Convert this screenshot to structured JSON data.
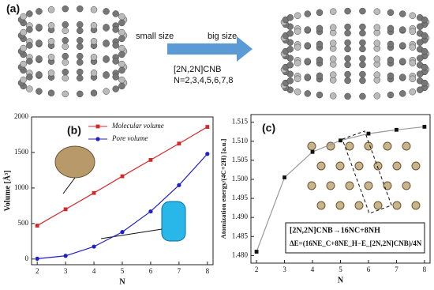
{
  "panel_a": {
    "label": "(a)",
    "left_text": "small size",
    "right_text": "big size",
    "formula": "[2N,2N]CNB",
    "range": "N=2,3,4,5,6,7,8"
  },
  "chart_data": [
    {
      "type": "line",
      "panel_label": "(b)",
      "x_label": "N",
      "y_label": "Volume [Å³]",
      "x": [
        2,
        3,
        4,
        5,
        6,
        7,
        8
      ],
      "xlim": [
        1.8,
        8.2
      ],
      "xticks": [
        2,
        3,
        4,
        5,
        6,
        7,
        8
      ],
      "ylim": [
        -80,
        2000
      ],
      "yticks": [
        0,
        500,
        1000,
        1500,
        2000
      ],
      "series": [
        {
          "name": "Molecular volume",
          "color": "#d62728",
          "marker": "square",
          "values": [
            470,
            700,
            930,
            1165,
            1395,
            1625,
            1860
          ]
        },
        {
          "name": "Pore volume",
          "color": "#1f1fc8",
          "marker": "circle",
          "values": [
            5,
            45,
            175,
            380,
            670,
            1040,
            1480
          ]
        }
      ],
      "legend": "top-left"
    },
    {
      "type": "line",
      "panel_label": "(c)",
      "x_label": "N",
      "y_label": "Atomization energy/(4C+2H) [a.u.]",
      "x": [
        2,
        3,
        4,
        5,
        6,
        7,
        8
      ],
      "xlim": [
        1.8,
        8.2
      ],
      "xticks": [
        2,
        3,
        4,
        5,
        6,
        7,
        8
      ],
      "ylim": [
        1.478,
        1.517
      ],
      "yticks": [
        {
          "value": 1.48,
          "label": "1.480"
        },
        {
          "value": 1.485,
          "label": "1.485"
        },
        {
          "value": 1.49,
          "label": "1.490"
        },
        {
          "value": 1.495,
          "label": "1.495"
        },
        {
          "value": 1.5,
          "label": "1.500"
        },
        {
          "value": 1.505,
          "label": "1.505"
        },
        {
          "value": 1.51,
          "label": "1.510"
        },
        {
          "value": 1.515,
          "label": "1.515"
        }
      ],
      "series": [
        {
          "color": "#111111",
          "line_color": "#999999",
          "marker": "square",
          "values": [
            1.481,
            1.5005,
            1.5072,
            1.5102,
            1.512,
            1.513,
            1.5138
          ]
        }
      ],
      "annotations": [
        "[2N,2N]CNB→16NC+8NH",
        "ΔE=(16NE_C+8NE_H−E_[2N,2N]CNB)/4N"
      ]
    }
  ]
}
